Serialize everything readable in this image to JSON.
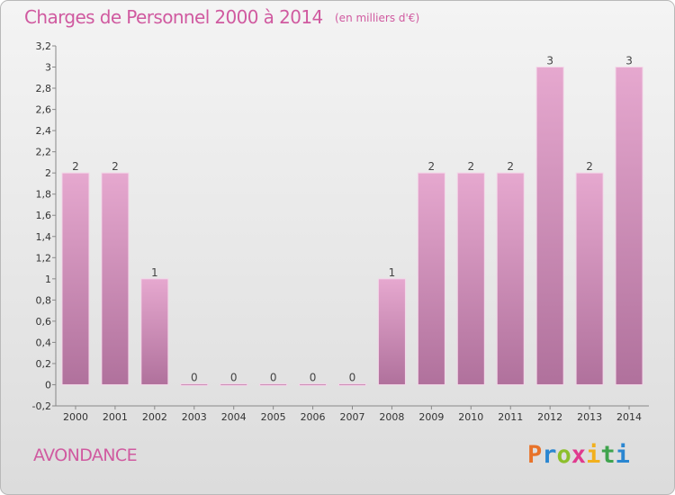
{
  "header": {
    "title": "Charges de Personnel 2000 à 2014",
    "subtitle": "(en milliers d'€)"
  },
  "footer": {
    "town": "AVONDANCE",
    "brand_letters": [
      "P",
      "r",
      "o",
      "x",
      "i",
      "t",
      "i"
    ],
    "brand_colors": [
      "#e8732a",
      "#2a86d1",
      "#8dbf2b",
      "#e03a8e",
      "#f2b01e",
      "#3fa34d",
      "#2a86d1"
    ]
  },
  "chart_data": {
    "type": "bar",
    "categories": [
      "2000",
      "2001",
      "2002",
      "2003",
      "2004",
      "2005",
      "2006",
      "2007",
      "2008",
      "2009",
      "2010",
      "2011",
      "2012",
      "2013",
      "2014"
    ],
    "values": [
      2,
      2,
      1,
      0,
      0,
      0,
      0,
      0,
      1,
      2,
      2,
      2,
      3,
      2,
      3
    ],
    "value_labels": [
      "2",
      "2",
      "1",
      "0",
      "0",
      "0",
      "0",
      "0",
      "1",
      "2",
      "2",
      "2",
      "3",
      "2",
      "3"
    ],
    "y_ticks": [
      "-0,2",
      "0",
      "0,2",
      "0,4",
      "0,6",
      "0,8",
      "1",
      "1,2",
      "1,4",
      "1,6",
      "1,8",
      "2",
      "2,2",
      "2,4",
      "2,6",
      "2,8",
      "3",
      "3,2"
    ],
    "ylim": [
      -0.2,
      3.2
    ],
    "grid": false,
    "bar_color_top": "#e6a8cf",
    "bar_color_bottom": "#b0719c"
  }
}
